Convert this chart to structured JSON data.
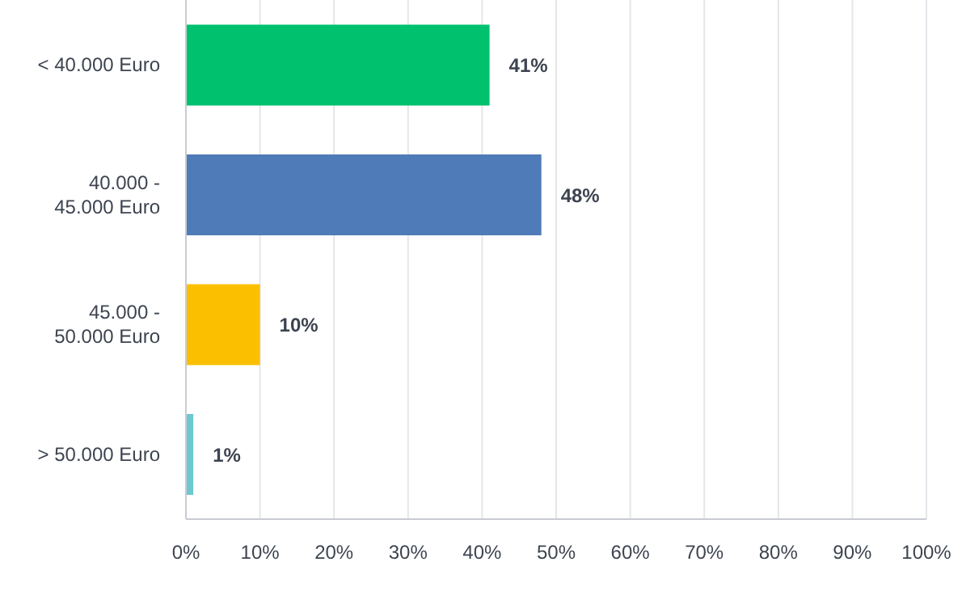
{
  "chart_data": {
    "type": "bar",
    "orientation": "horizontal",
    "categories": [
      "< 40.000 Euro",
      "40.000 - 45.000 Euro",
      "45.000 - 50.000 Euro",
      "> 50.000 Euro"
    ],
    "values": [
      41,
      48,
      10,
      1
    ],
    "colors": [
      "#00c16e",
      "#4f7bb8",
      "#fbbf00",
      "#6dc8d0"
    ],
    "value_labels": [
      "41%",
      "48%",
      "10%",
      "1%"
    ],
    "xlim": [
      0,
      100
    ],
    "xticks": [
      {
        "value": 0,
        "label": "0%"
      },
      {
        "value": 10,
        "label": "10%"
      },
      {
        "value": 20,
        "label": "20%"
      },
      {
        "value": 30,
        "label": "30%"
      },
      {
        "value": 40,
        "label": "40%"
      },
      {
        "value": 50,
        "label": "50%"
      },
      {
        "value": 60,
        "label": "60%"
      },
      {
        "value": 70,
        "label": "70%"
      },
      {
        "value": 80,
        "label": "80%"
      },
      {
        "value": 90,
        "label": "90%"
      },
      {
        "value": 100,
        "label": "100%"
      }
    ],
    "grid": "x"
  }
}
